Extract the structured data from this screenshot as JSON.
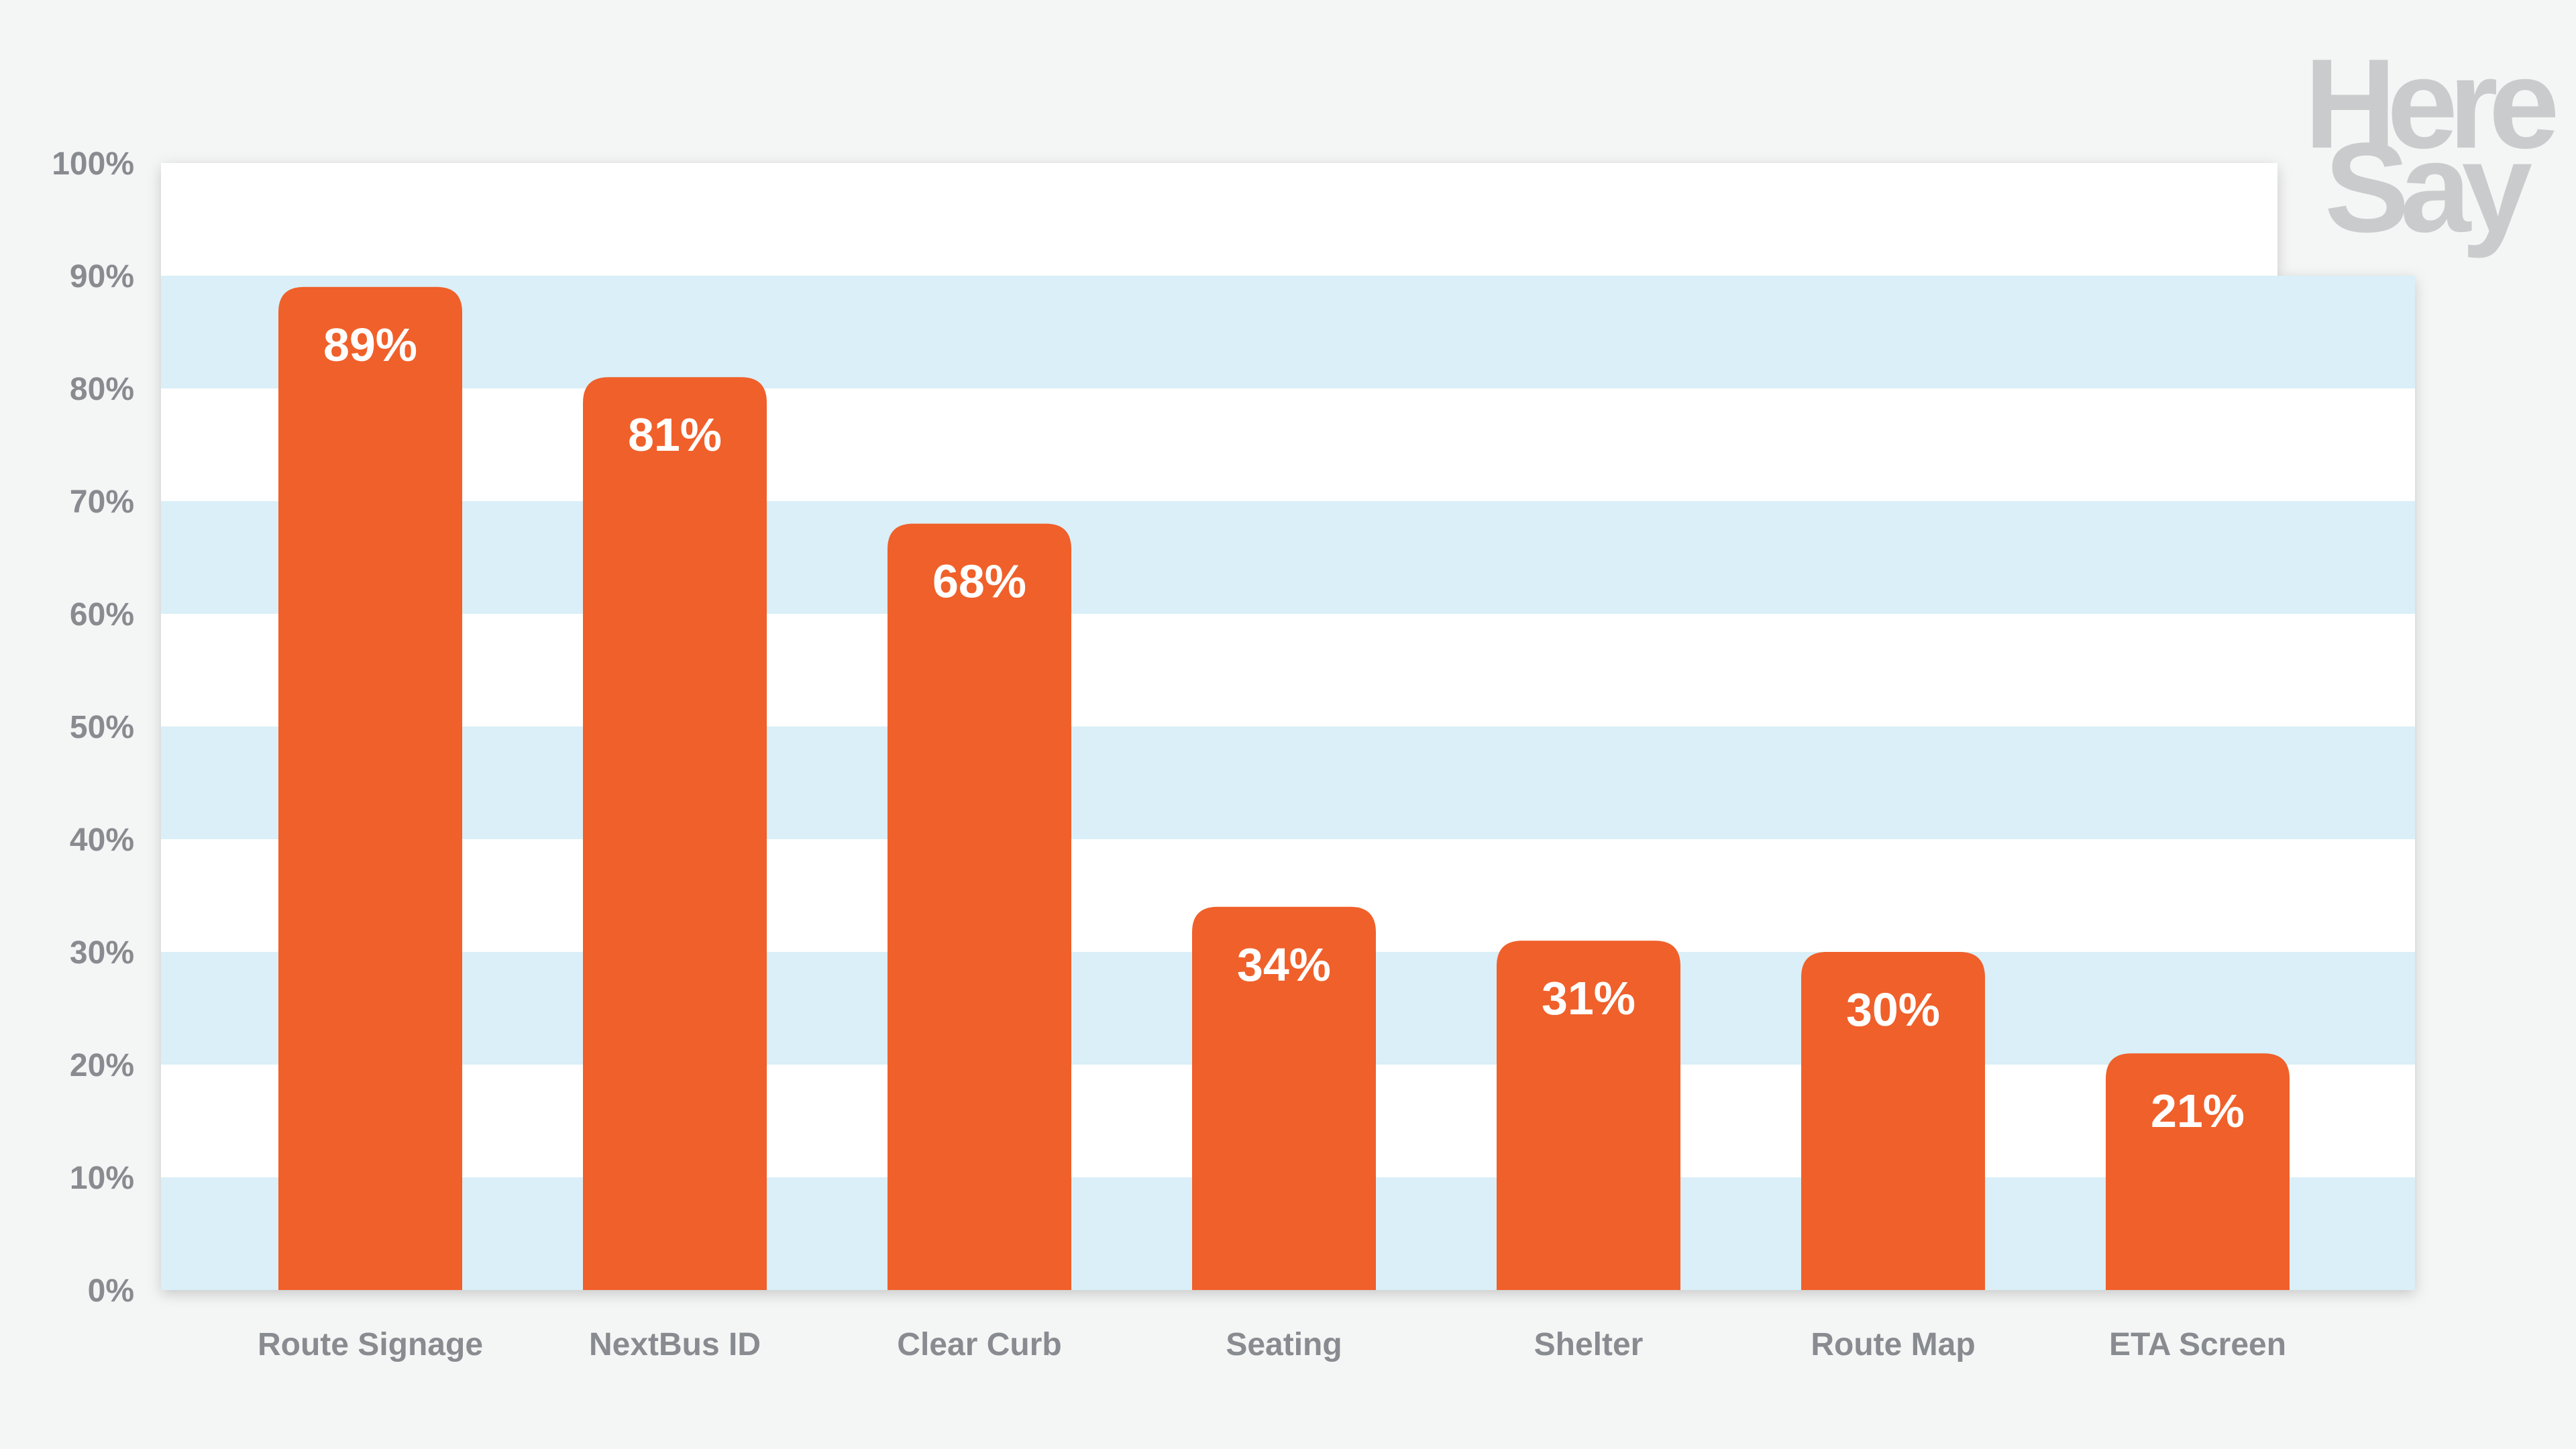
{
  "chart_data": {
    "type": "bar",
    "title": "",
    "xlabel": "",
    "ylabel": "",
    "categories": [
      "Route Signage",
      "NextBus ID",
      "Clear Curb",
      "Seating",
      "Shelter",
      "Route Map",
      "ETA Screen"
    ],
    "values": [
      89,
      81,
      68,
      34,
      31,
      30,
      21
    ],
    "value_labels": [
      "89%",
      "81%",
      "68%",
      "34%",
      "31%",
      "30%",
      "21%"
    ],
    "ylim": [
      0,
      100
    ],
    "yticks": [
      0,
      10,
      20,
      30,
      40,
      50,
      60,
      70,
      80,
      90,
      100
    ],
    "ytick_labels": [
      "0%",
      "10%",
      "20%",
      "30%",
      "40%",
      "50%",
      "60%",
      "70%",
      "80%",
      "90%",
      "100%"
    ],
    "grid": "alternating horizontal bands",
    "legend": "none"
  },
  "logo": {
    "line1": "Here",
    "line2": "Say"
  },
  "colors": {
    "background": "#f4f5f5",
    "bar": "#f0602a",
    "band": "#daeff7",
    "plot": "#ffffff",
    "axis_text": "#888b8f",
    "logo": "#c9cbcd"
  }
}
